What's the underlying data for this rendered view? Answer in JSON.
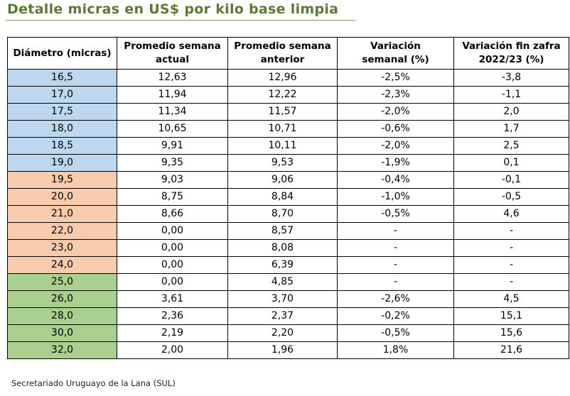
{
  "title": "Detalle micras en US$ por kilo base limpia",
  "table": {
    "headers": [
      [
        "Diámetro (micras)"
      ],
      [
        "Promedio semana",
        "actual"
      ],
      [
        "Promedio semana",
        "anterior"
      ],
      [
        "Variación",
        "semanal (%)"
      ],
      [
        "Variación fin zafra",
        "2022/23 (%)"
      ]
    ],
    "rows": [
      {
        "diam": "16,5",
        "actual": "12,63",
        "anterior": "12,96",
        "var_sem": "-2,5%",
        "var_zafra": "-3,8",
        "group": "blue"
      },
      {
        "diam": "17,0",
        "actual": "11,94",
        "anterior": "12,22",
        "var_sem": "-2,3%",
        "var_zafra": "-1,1",
        "group": "blue"
      },
      {
        "diam": "17,5",
        "actual": "11,34",
        "anterior": "11,57",
        "var_sem": "-2,0%",
        "var_zafra": "2,0",
        "group": "blue"
      },
      {
        "diam": "18,0",
        "actual": "10,65",
        "anterior": "10,71",
        "var_sem": "-0,6%",
        "var_zafra": "1,7",
        "group": "blue"
      },
      {
        "diam": "18,5",
        "actual": "9,91",
        "anterior": "10,11",
        "var_sem": "-2,0%",
        "var_zafra": "2,5",
        "group": "blue"
      },
      {
        "diam": "19,0",
        "actual": "9,35",
        "anterior": "9,53",
        "var_sem": "-1,9%",
        "var_zafra": "0,1",
        "group": "blue"
      },
      {
        "diam": "19,5",
        "actual": "9,03",
        "anterior": "9,06",
        "var_sem": "-0,4%",
        "var_zafra": "-0,1",
        "group": "salmon"
      },
      {
        "diam": "20,0",
        "actual": "8,75",
        "anterior": "8,84",
        "var_sem": "-1,0%",
        "var_zafra": "-0,5",
        "group": "salmon"
      },
      {
        "diam": "21,0",
        "actual": "8,66",
        "anterior": "8,70",
        "var_sem": "-0,5%",
        "var_zafra": "4,6",
        "group": "salmon"
      },
      {
        "diam": "22,0",
        "actual": "0,00",
        "anterior": "8,57",
        "var_sem": "-",
        "var_zafra": "-",
        "group": "salmon"
      },
      {
        "diam": "23,0",
        "actual": "0,00",
        "anterior": "8,08",
        "var_sem": "-",
        "var_zafra": "-",
        "group": "salmon"
      },
      {
        "diam": "24,0",
        "actual": "0,00",
        "anterior": "6,39",
        "var_sem": "-",
        "var_zafra": "-",
        "group": "salmon"
      },
      {
        "diam": "25,0",
        "actual": "0,00",
        "anterior": "4,85",
        "var_sem": "-",
        "var_zafra": "-",
        "group": "green"
      },
      {
        "diam": "26,0",
        "actual": "3,61",
        "anterior": "3,70",
        "var_sem": "-2,6%",
        "var_zafra": "4,5",
        "group": "green"
      },
      {
        "diam": "28,0",
        "actual": "2,36",
        "anterior": "2,37",
        "var_sem": "-0,2%",
        "var_zafra": "15,1",
        "group": "green"
      },
      {
        "diam": "30,0",
        "actual": "2,19",
        "anterior": "2,20",
        "var_sem": "-0,5%",
        "var_zafra": "15,6",
        "group": "green"
      },
      {
        "diam": "32,0",
        "actual": "2,00",
        "anterior": "1,96",
        "var_sem": "1,8%",
        "var_zafra": "21,6",
        "group": "green"
      }
    ]
  },
  "colors": {
    "title": "#5b7a33",
    "blue": "#bdd7ee",
    "salmon": "#f8cbad",
    "green": "#a9d08e"
  },
  "footer": "Secretariado Uruguayo de la Lana (SUL)"
}
